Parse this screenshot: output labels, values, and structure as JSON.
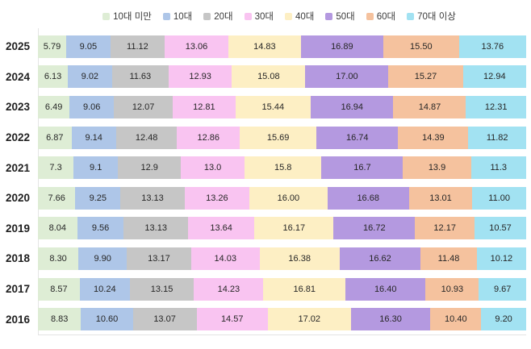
{
  "chart_data": {
    "type": "bar",
    "orientation": "horizontal-stacked",
    "legend_position": "top",
    "grid": false,
    "unit": "percent",
    "categories": [
      "2025",
      "2024",
      "2023",
      "2022",
      "2021",
      "2020",
      "2019",
      "2018",
      "2017",
      "2016"
    ],
    "series": [
      {
        "name": "10대 미만",
        "color": "#deedd5",
        "values": [
          "5.79",
          "6.13",
          "6.49",
          "6.87",
          "7.3",
          "7.66",
          "8.04",
          "8.30",
          "8.57",
          "8.83"
        ]
      },
      {
        "name": "10대",
        "color": "#aec6e8",
        "values": [
          "9.05",
          "9.02",
          "9.06",
          "9.14",
          "9.1",
          "9.25",
          "9.56",
          "9.90",
          "10.24",
          "10.60"
        ]
      },
      {
        "name": "20대",
        "color": "#c6c6c6",
        "values": [
          "11.12",
          "11.63",
          "12.07",
          "12.48",
          "12.9",
          "13.13",
          "13.13",
          "13.17",
          "13.15",
          "13.07"
        ]
      },
      {
        "name": "30대",
        "color": "#f9c4f1",
        "values": [
          "13.06",
          "12.93",
          "12.81",
          "12.86",
          "13.0",
          "13.26",
          "13.64",
          "14.03",
          "14.23",
          "14.57"
        ]
      },
      {
        "name": "40대",
        "color": "#fdefc4",
        "values": [
          "14.83",
          "15.08",
          "15.44",
          "15.69",
          "15.8",
          "16.00",
          "16.17",
          "16.38",
          "16.81",
          "17.02"
        ]
      },
      {
        "name": "50대",
        "color": "#b499e0",
        "values": [
          "16.89",
          "17.00",
          "16.94",
          "16.74",
          "16.7",
          "16.68",
          "16.72",
          "16.62",
          "16.40",
          "16.30"
        ]
      },
      {
        "name": "60대",
        "color": "#f5c29e",
        "values": [
          "15.50",
          "15.27",
          "14.87",
          "14.39",
          "13.9",
          "13.01",
          "12.17",
          "11.48",
          "10.93",
          "10.40"
        ]
      },
      {
        "name": "70대 이상",
        "color": "#a2e2f2",
        "values": [
          "13.76",
          "12.94",
          "12.31",
          "11.82",
          "11.3",
          "11.00",
          "10.57",
          "10.12",
          "9.67",
          "9.20"
        ]
      }
    ],
    "xlim": [
      0,
      100
    ],
    "value_label_color": "#262626",
    "axis_line_color": "#e4e4e4"
  }
}
